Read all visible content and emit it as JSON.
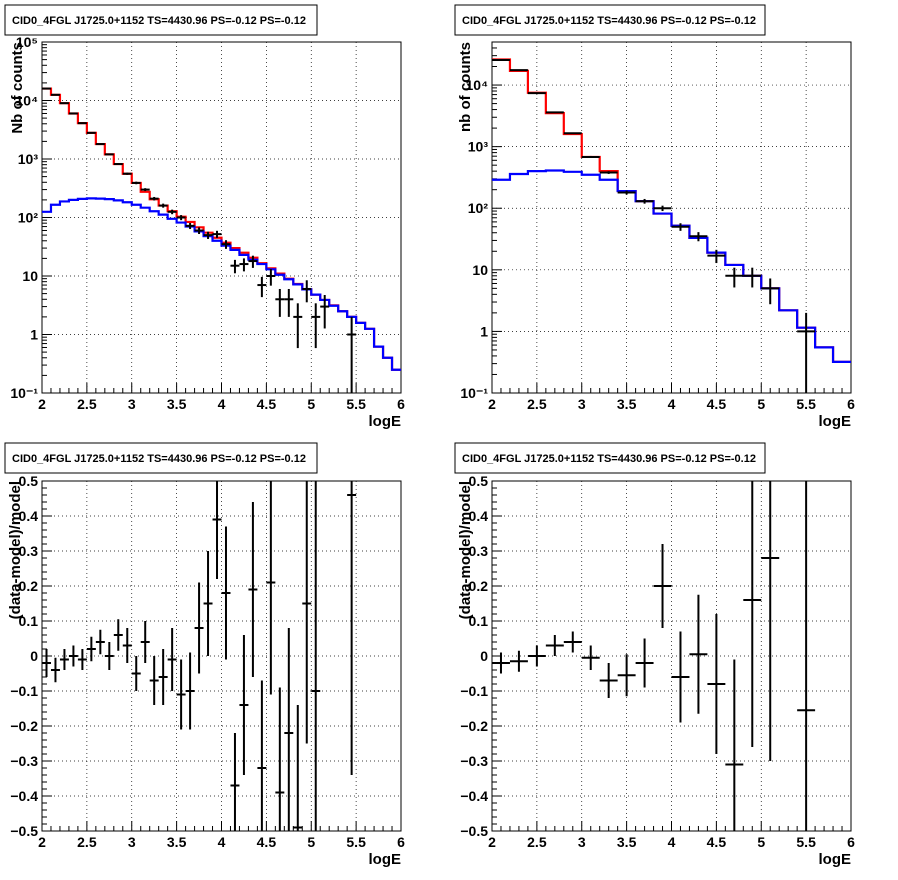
{
  "chart_data": [
    {
      "type": "step",
      "title": "CID0_4FGL J1725.0+1152 TS=4430.96 PS=-0.12 PS=-0.12",
      "xlabel": "logE",
      "ylabel": "Nb of counts",
      "xlim": [
        2,
        6
      ],
      "ylim": [
        0.1,
        100000
      ],
      "yscale": "log",
      "grid": true,
      "xticks": [
        "2",
        "2.5",
        "3",
        "3.5",
        "4",
        "4.5",
        "5",
        "5.5",
        "6"
      ],
      "yticks": [
        "10⁻¹",
        "1",
        "10",
        "10²",
        "10³",
        "10⁴",
        "10⁵"
      ],
      "bin_width": 0.1,
      "series": [
        {
          "color": "#ff0000",
          "x": [
            2.05,
            2.15,
            2.25,
            2.35,
            2.45,
            2.55,
            2.65,
            2.75,
            2.85,
            2.95,
            3.05,
            3.15,
            3.25,
            3.35,
            3.45,
            3.55,
            3.65,
            3.75,
            3.85,
            3.95,
            4.05,
            4.15,
            4.25,
            4.35,
            4.45,
            4.55,
            4.65,
            4.75,
            4.85,
            4.95,
            5.05,
            5.15,
            5.25,
            5.35,
            5.45,
            5.55,
            5.65,
            5.75,
            5.85,
            5.95
          ],
          "y": [
            16000,
            12500,
            9000,
            6000,
            4100,
            2800,
            1800,
            1200,
            820,
            560,
            390,
            275,
            205,
            160,
            128,
            103,
            84,
            68,
            55,
            45,
            37,
            30,
            25,
            20.5,
            16.5,
            13.5,
            11,
            9,
            7.3,
            5.9,
            4.8,
            3.9,
            3.15,
            2.5,
            2.0,
            1.58,
            1.25,
            0.62,
            0.4,
            0.25
          ]
        },
        {
          "color": "#0000ff",
          "x": [
            2.05,
            2.15,
            2.25,
            2.35,
            2.45,
            2.55,
            2.65,
            2.75,
            2.85,
            2.95,
            3.05,
            3.15,
            3.25,
            3.35,
            3.45,
            3.55,
            3.65,
            3.75,
            3.85,
            3.95,
            4.05,
            4.15,
            4.25,
            4.35,
            4.45,
            4.55,
            4.65,
            4.75,
            4.85,
            4.95,
            5.05,
            5.15,
            5.25,
            5.35,
            5.45,
            5.55,
            5.65,
            5.75,
            5.85,
            5.95
          ],
          "y": [
            125,
            165,
            188,
            200,
            208,
            212,
            210,
            206,
            196,
            182,
            165,
            147,
            128,
            112,
            95,
            82,
            70,
            58,
            48,
            40,
            33,
            28,
            23,
            19,
            16,
            13,
            10.5,
            8.8,
            7.2,
            5.9,
            4.8,
            3.9,
            3.1,
            2.5,
            2.0,
            1.58,
            1.25,
            0.62,
            0.4,
            0.25
          ]
        }
      ],
      "data_points": {
        "x": [
          2.05,
          2.15,
          2.25,
          2.35,
          2.45,
          2.55,
          2.65,
          2.75,
          2.85,
          2.95,
          3.05,
          3.15,
          3.25,
          3.35,
          3.45,
          3.55,
          3.65,
          3.75,
          3.85,
          3.95,
          4.05,
          4.15,
          4.25,
          4.35,
          4.45,
          4.55,
          4.65,
          4.75,
          4.85,
          4.95,
          5.05,
          5.15,
          5.45
        ],
        "y": [
          16000,
          12500,
          9000,
          6000,
          4100,
          2800,
          1800,
          1200,
          820,
          560,
          390,
          300,
          210,
          160,
          125,
          100,
          72,
          60,
          50,
          52,
          35,
          15,
          16,
          18,
          7,
          10,
          4,
          4,
          2,
          6,
          2,
          3,
          1
        ]
      }
    },
    {
      "type": "step",
      "title": "CID0_4FGL J1725.0+1152 TS=4430.96 PS=-0.12 PS=-0.12",
      "xlabel": "logE",
      "ylabel": "nb of counts",
      "xlim": [
        2,
        6
      ],
      "ylim": [
        0.1,
        50000
      ],
      "yscale": "log",
      "grid": true,
      "xticks": [
        "2",
        "2.5",
        "3",
        "3.5",
        "4",
        "4.5",
        "5",
        "5.5",
        "6"
      ],
      "yticks": [
        "10⁻¹",
        "1",
        "10",
        "10²",
        "10³",
        "10⁴"
      ],
      "bin_width": 0.2,
      "series": [
        {
          "color": "#ff0000",
          "x": [
            2.1,
            2.3,
            2.5,
            2.7,
            2.9,
            3.1,
            3.3,
            3.5,
            3.7,
            3.9,
            4.1,
            4.3,
            4.5,
            4.7,
            4.9,
            5.1,
            5.3,
            5.5,
            5.7,
            5.9
          ],
          "y": [
            26000,
            17000,
            7500,
            3500,
            1600,
            680,
            400,
            190,
            130,
            82,
            52,
            33,
            19,
            12,
            8,
            5,
            2.2,
            1.15,
            0.55,
            0.32
          ]
        },
        {
          "color": "#0000ff",
          "x": [
            2.1,
            2.3,
            2.5,
            2.7,
            2.9,
            3.1,
            3.3,
            3.5,
            3.7,
            3.9,
            4.1,
            4.3,
            4.5,
            4.7,
            4.9,
            5.1,
            5.3,
            5.5,
            5.7,
            5.9
          ],
          "y": [
            290,
            360,
            400,
            410,
            390,
            350,
            290,
            190,
            130,
            82,
            52,
            33,
            19,
            12,
            8,
            5,
            2.2,
            1.15,
            0.55,
            0.32
          ]
        }
      ],
      "data_points": {
        "x": [
          2.1,
          2.3,
          2.5,
          2.7,
          2.9,
          3.1,
          3.3,
          3.5,
          3.7,
          3.9,
          4.1,
          4.3,
          4.5,
          4.7,
          4.9,
          5.1,
          5.5
        ],
        "y": [
          25500,
          17500,
          7400,
          3600,
          1650,
          680,
          380,
          180,
          130,
          100,
          50,
          35,
          17,
          8,
          8,
          5,
          1
        ]
      }
    },
    {
      "type": "scatter",
      "title": "CID0_4FGL J1725.0+1152 TS=4430.96 PS=-0.12 PS=-0.12",
      "xlabel": "logE",
      "ylabel": "(data-model)/model",
      "xlim": [
        2,
        6
      ],
      "ylim": [
        -0.5,
        0.5
      ],
      "yscale": "linear",
      "grid": true,
      "xticks": [
        "2",
        "2.5",
        "3",
        "3.5",
        "4",
        "4.5",
        "5",
        "5.5",
        "6"
      ],
      "yticks": [
        "−0.5",
        "−0.4",
        "−0.3",
        "−0.2",
        "−0.1",
        "0",
        "0.1",
        "0.2",
        "0.3",
        "0.4",
        "0.5"
      ],
      "bin_width": 0.1,
      "points": {
        "x": [
          2.05,
          2.15,
          2.25,
          2.35,
          2.45,
          2.55,
          2.65,
          2.75,
          2.85,
          2.95,
          3.05,
          3.15,
          3.25,
          3.35,
          3.45,
          3.55,
          3.65,
          3.75,
          3.85,
          3.95,
          4.05,
          4.15,
          4.25,
          4.35,
          4.45,
          4.55,
          4.65,
          4.75,
          4.85,
          4.95,
          5.05,
          5.45
        ],
        "y": [
          -0.02,
          -0.04,
          -0.01,
          0.0,
          -0.01,
          0.02,
          0.04,
          0.0,
          0.06,
          0.03,
          -0.05,
          0.04,
          -0.07,
          -0.06,
          -0.01,
          -0.11,
          -0.1,
          0.08,
          0.15,
          0.39,
          0.18,
          -0.37,
          -0.14,
          0.19,
          -0.32,
          0.21,
          -0.39,
          -0.22,
          -0.49,
          0.15,
          -0.1,
          0.46
        ],
        "err": [
          0.04,
          0.035,
          0.03,
          0.03,
          0.03,
          0.035,
          0.035,
          0.04,
          0.045,
          0.05,
          0.05,
          0.06,
          0.07,
          0.08,
          0.09,
          0.1,
          0.11,
          0.13,
          0.15,
          0.17,
          0.19,
          0.15,
          0.2,
          0.25,
          0.25,
          0.32,
          0.3,
          0.3,
          0.35,
          0.4,
          0.8,
          0.8
        ]
      }
    },
    {
      "type": "scatter",
      "title": "CID0_4FGL J1725.0+1152 TS=4430.96 PS=-0.12 PS=-0.12",
      "xlabel": "logE",
      "ylabel": "(data-model)/model",
      "xlim": [
        2,
        6
      ],
      "ylim": [
        -0.5,
        0.5
      ],
      "yscale": "linear",
      "grid": true,
      "xticks": [
        "2",
        "2.5",
        "3",
        "3.5",
        "4",
        "4.5",
        "5",
        "5.5",
        "6"
      ],
      "yticks": [
        "−0.5",
        "−0.4",
        "−0.3",
        "−0.2",
        "−0.1",
        "0",
        "0.1",
        "0.2",
        "0.3",
        "0.4",
        "0.5"
      ],
      "bin_width": 0.2,
      "points": {
        "x": [
          2.1,
          2.3,
          2.5,
          2.7,
          2.9,
          3.1,
          3.3,
          3.5,
          3.7,
          3.9,
          4.1,
          4.3,
          4.5,
          4.7,
          4.9,
          5.1,
          5.5
        ],
        "y": [
          -0.02,
          -0.015,
          0.0,
          0.03,
          0.04,
          -0.005,
          -0.07,
          -0.055,
          -0.02,
          0.2,
          -0.06,
          0.005,
          -0.08,
          -0.31,
          0.16,
          0.28,
          -0.155
        ],
        "err": [
          0.03,
          0.03,
          0.03,
          0.03,
          0.03,
          0.035,
          0.05,
          0.06,
          0.07,
          0.12,
          0.13,
          0.17,
          0.2,
          0.3,
          0.42,
          0.58,
          0.8
        ]
      }
    }
  ]
}
